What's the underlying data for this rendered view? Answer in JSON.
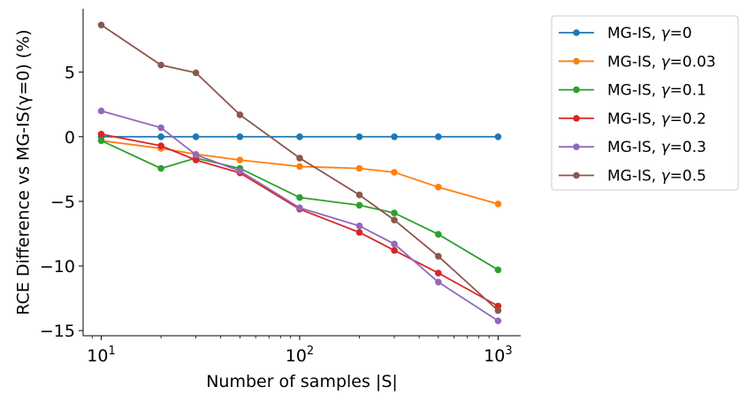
{
  "chart_data": {
    "type": "line",
    "title": "",
    "xlabel": "Number of samples |S|",
    "ylabel": "RCE Difference vs MG-IS(γ=0) (%)",
    "xscale": "log",
    "xlim": [
      8.1,
      1300
    ],
    "ylim": [
      -15.4,
      9.9
    ],
    "x": [
      10,
      20,
      30,
      50,
      100,
      200,
      300,
      500,
      1000
    ],
    "x_ticks": [
      {
        "value": 10,
        "base": "10",
        "exp": "1"
      },
      {
        "value": 100,
        "base": "10",
        "exp": "2"
      },
      {
        "value": 1000,
        "base": "10",
        "exp": "3"
      }
    ],
    "y_ticks": [
      {
        "value": 5,
        "label": "5"
      },
      {
        "value": 0,
        "label": "0"
      },
      {
        "value": -5,
        "label": "−5"
      },
      {
        "value": -10,
        "label": "−10"
      },
      {
        "value": -15,
        "label": "−15"
      }
    ],
    "legend_position": "outside-right",
    "series": [
      {
        "name": "MG-IS, γ=0",
        "prefix": "MG-IS, ",
        "symbol": "γ",
        "suffix": "=0",
        "color": "#1f77b4",
        "values": [
          0,
          0,
          0,
          0,
          0,
          0,
          0,
          0,
          0
        ]
      },
      {
        "name": "MG-IS, γ=0.03",
        "prefix": "MG-IS, ",
        "symbol": "γ",
        "suffix": "=0.03",
        "color": "#ff7f0e",
        "values": [
          -0.3,
          -0.9,
          -1.35,
          -1.8,
          -2.3,
          -2.45,
          -2.75,
          -3.9,
          -5.2
        ]
      },
      {
        "name": "MG-IS, γ=0.1",
        "prefix": "MG-IS, ",
        "symbol": "γ",
        "suffix": "=0.1",
        "color": "#2ca02c",
        "values": [
          -0.3,
          -2.45,
          -1.65,
          -2.45,
          -4.7,
          -5.3,
          -5.9,
          -7.55,
          -10.3
        ]
      },
      {
        "name": "MG-IS, γ=0.2",
        "prefix": "MG-IS, ",
        "symbol": "γ",
        "suffix": "=0.2",
        "color": "#d62728",
        "values": [
          0.2,
          -0.7,
          -1.8,
          -2.8,
          -5.6,
          -7.4,
          -8.8,
          -10.55,
          -13.1
        ]
      },
      {
        "name": "MG-IS, γ=0.3",
        "prefix": "MG-IS, ",
        "symbol": "γ",
        "suffix": "=0.3",
        "color": "#9467bd",
        "values": [
          2.0,
          0.7,
          -1.4,
          -2.65,
          -5.5,
          -6.9,
          -8.3,
          -11.25,
          -14.25
        ]
      },
      {
        "name": "MG-IS, γ=0.5",
        "prefix": "MG-IS, ",
        "symbol": "γ",
        "suffix": "=0.5",
        "color": "#8c564b",
        "values": [
          8.65,
          5.55,
          4.95,
          1.7,
          -1.65,
          -4.5,
          -6.45,
          -9.25,
          -13.45
        ]
      }
    ]
  }
}
